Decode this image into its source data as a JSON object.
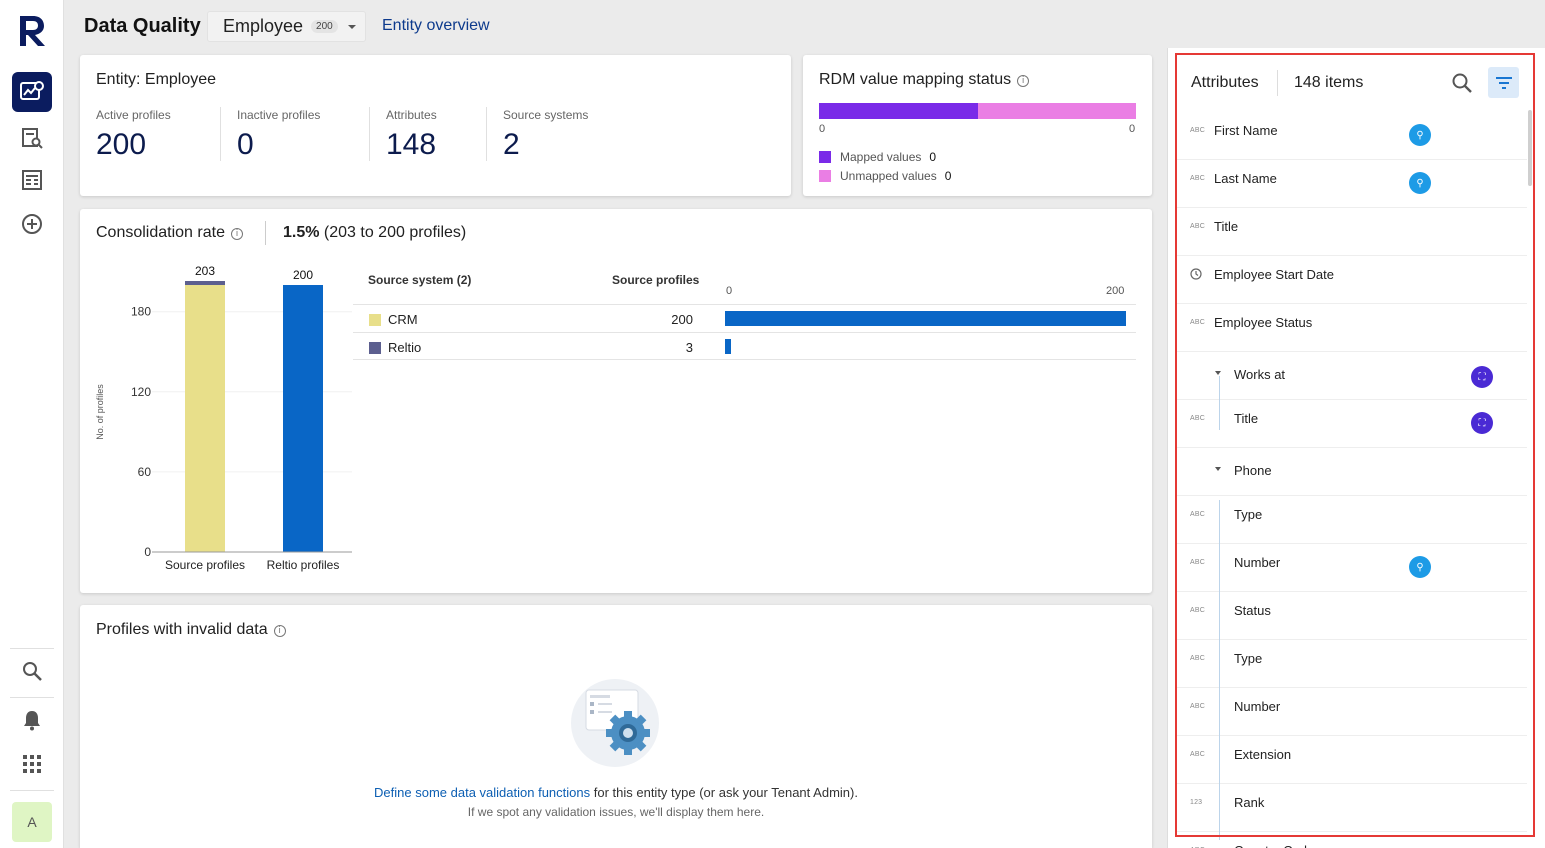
{
  "header": {
    "title": "Data Quality",
    "entity_name": "Employee",
    "entity_count": "200",
    "overview_link": "Entity overview"
  },
  "rail": {
    "avatar_letter": "A",
    "icons": [
      "reltio-logo-icon",
      "data-quality-icon",
      "search-list-icon",
      "article-icon",
      "add-circle-icon",
      "search-icon",
      "bell-icon",
      "apps-grid-icon"
    ]
  },
  "entity_card": {
    "title": "Entity: Employee",
    "stats": [
      {
        "label": "Active profiles",
        "value": "200"
      },
      {
        "label": "Inactive profiles",
        "value": "0"
      },
      {
        "label": "Attributes",
        "value": "148"
      },
      {
        "label": "Source systems",
        "value": "2"
      }
    ]
  },
  "rdm_card": {
    "title": "RDM value mapping status",
    "tick_start": "0",
    "tick_end": "0",
    "mapped_label": "Mapped values",
    "mapped_value": "0",
    "unmapped_label": "Unmapped values",
    "unmapped_value": "0",
    "colors": {
      "mapped": "#7a2ae8",
      "unmapped": "#ea7ee4"
    }
  },
  "consolidation": {
    "title": "Consolidation rate",
    "rate_value": "1.5%",
    "rate_detail": "(203 to 200 profiles)",
    "source_header": "Source system (2)",
    "profiles_header": "Source profiles",
    "sources": [
      {
        "name": "CRM",
        "count": "200",
        "value": 200,
        "color": "#e8df8a"
      },
      {
        "name": "Reltio",
        "count": "3",
        "value": 3,
        "color": "#5c5f8f"
      }
    ],
    "bar_tick_start": "0",
    "bar_tick_end": "200",
    "bar_color": "#0966c6"
  },
  "chart_data": {
    "type": "bar",
    "categories": [
      "Source profiles",
      "Reltio profiles"
    ],
    "series": [
      {
        "name": "CRM",
        "values": [
          200,
          0
        ]
      },
      {
        "name": "Reltio",
        "values": [
          3,
          0
        ]
      },
      {
        "name": "",
        "values": [
          0,
          200
        ]
      }
    ],
    "totals": [
      "203",
      "200"
    ],
    "ylabel": "No. of profiles",
    "ylim": [
      0,
      203
    ],
    "yticks": [
      0,
      60,
      120,
      180
    ],
    "stacked": true,
    "grid": false,
    "colors": [
      "#e8df8a",
      "#5c5f8f",
      "#0966c6"
    ]
  },
  "invalid": {
    "title": "Profiles with invalid data",
    "link_text": "Define some data validation functions",
    "message_rest": " for this entity type (or ask your Tenant Admin).",
    "sub": "If we spot any validation issues, we'll display them here."
  },
  "attributes": {
    "title": "Attributes",
    "count": "148 items",
    "items": [
      {
        "type": "ABC",
        "name": "First Name",
        "badge": "blue"
      },
      {
        "type": "ABC",
        "name": "Last Name",
        "badge": "blue"
      },
      {
        "type": "ABC",
        "name": "Title"
      },
      {
        "type": "clock",
        "name": "Employee Start Date"
      },
      {
        "type": "ABC",
        "name": "Employee Status"
      },
      {
        "type": "",
        "name": "Works at",
        "badge": "purple",
        "expand": true
      },
      {
        "type": "ABC",
        "name": "Title",
        "badge": "purple",
        "child": true
      },
      {
        "type": "",
        "name": "Phone",
        "expand": true
      },
      {
        "type": "ABC",
        "name": "Type",
        "child": true
      },
      {
        "type": "ABC",
        "name": "Number",
        "badge": "blue",
        "child": true
      },
      {
        "type": "ABC",
        "name": "Status",
        "child": true
      },
      {
        "type": "ABC",
        "name": "Type",
        "child": true
      },
      {
        "type": "ABC",
        "name": "Number",
        "child": true
      },
      {
        "type": "ABC",
        "name": "Extension",
        "child": true
      },
      {
        "type": "123",
        "name": "Rank",
        "child": true
      },
      {
        "type": "ABC",
        "name": "Country Code",
        "child": true
      }
    ]
  }
}
